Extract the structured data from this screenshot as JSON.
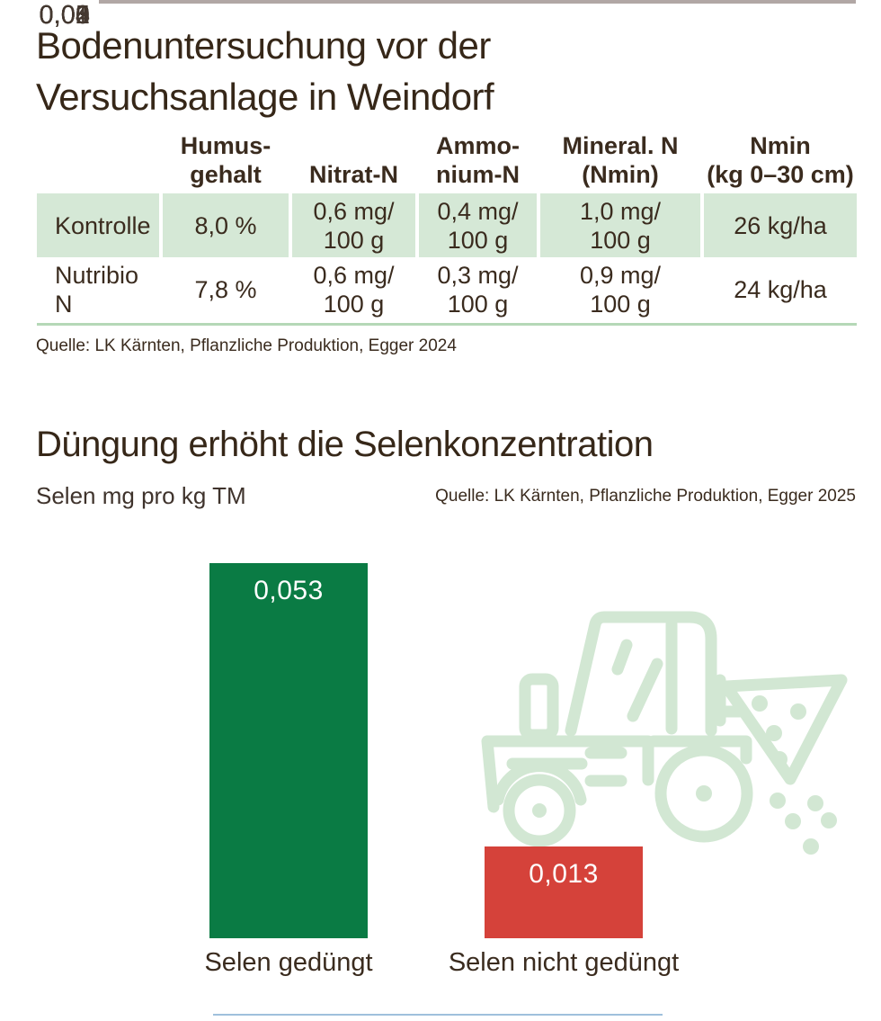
{
  "table_section": {
    "title": "Bodenuntersuchung vor der\nVersuchsanlage in Weindorf",
    "columns": [
      "",
      "Humus-\ngehalt",
      "Nitrat-N",
      "Ammo-\nnium-N",
      "Mineral. N\n(Nmin)",
      "Nmin\n(kg 0–30 cm)"
    ],
    "rows": [
      {
        "label": "Kontrolle",
        "highlighted": true,
        "cells": [
          "8,0 %",
          "0,6 mg/\n100 g",
          "0,4 mg/\n100 g",
          "1,0 mg/\n100 g",
          "26 kg/ha"
        ]
      },
      {
        "label": "Nutribio N",
        "highlighted": false,
        "cells": [
          "7,8 %",
          "0,6 mg/\n100 g",
          "0,3 mg/\n100 g",
          "0,9 mg/\n100 g",
          "24 kg/ha"
        ]
      }
    ],
    "source": "Quelle: LK Kärnten, Pflanzliche Produktion, Egger 2024"
  },
  "chart_section": {
    "title": "Düngung erhöht die Selenkonzentration",
    "ylabel": "Selen mg pro kg TM",
    "source": "Quelle: LK Kärnten, Pflanzliche Produktion, Egger 2025"
  },
  "chart_data": {
    "type": "bar",
    "title": "Düngung erhöht die Selenkonzentration",
    "ylabel": "Selen mg pro kg TM",
    "categories": [
      "Selen gedüngt",
      "Selen nicht gedüngt"
    ],
    "values": [
      0.053,
      0.013
    ],
    "value_labels": [
      "0,053",
      "0,013"
    ],
    "bar_colors": [
      "#0a7b44",
      "#d5423a"
    ],
    "yticks": [
      "0,05",
      "0,04",
      "0,03",
      "0,02",
      "0,01",
      "0"
    ],
    "ylim": [
      0,
      0.053
    ],
    "grid": true,
    "legend": false,
    "watermark_icon": "tractor-seed-spreader"
  },
  "colors": {
    "text_dark": "#362718",
    "row_highlight": "#d5e8d6",
    "table_rule": "#b5d8b7",
    "gridline": "#b1a7a5",
    "bar_green": "#0a7b44",
    "bar_red": "#d5423a",
    "watermark_green": "#d2e7d3",
    "value_label_text": "#ffffff",
    "bottom_rule": "#9fc0dc"
  }
}
